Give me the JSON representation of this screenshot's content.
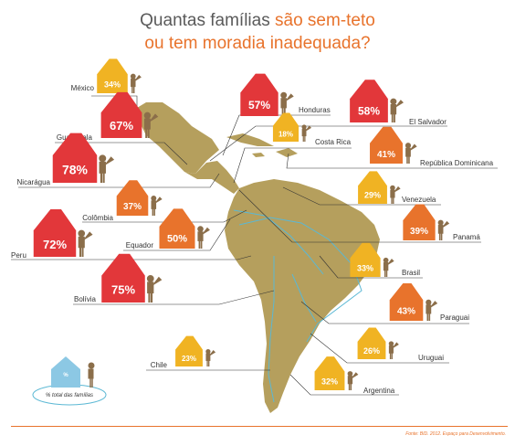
{
  "title": {
    "line1_plain": "Quantas famílias ",
    "line1_accent": "são sem-teto",
    "line2_accent": "ou tem moradia inadequada?"
  },
  "legend": {
    "label": "% total das famílias",
    "symbol": "%"
  },
  "source": "Fonte: BID. 2012. Espaço para Desenvolvimento.",
  "colors": {
    "low": "#f0b323",
    "medium": "#e8732c",
    "high": "#e2373a",
    "legend": "#8cc8e4",
    "land": "#b59f5d",
    "water_lines": "#5bb8d4",
    "accent": "#e8732c"
  },
  "chart_data": {
    "type": "map",
    "unit": "%",
    "countries": [
      {
        "name": "México",
        "value": 34
      },
      {
        "name": "Guatemala",
        "value": 67
      },
      {
        "name": "Nicarágua",
        "value": 78
      },
      {
        "name": "Colômbia",
        "value": 37
      },
      {
        "name": "Peru",
        "value": 72
      },
      {
        "name": "Equador",
        "value": 50
      },
      {
        "name": "Bolívia",
        "value": 75
      },
      {
        "name": "Chile",
        "value": 23
      },
      {
        "name": "Honduras",
        "value": 57
      },
      {
        "name": "El Salvador",
        "value": 58
      },
      {
        "name": "Costa Rica",
        "value": 18
      },
      {
        "name": "República Dominicana",
        "value": 41
      },
      {
        "name": "Venezuela",
        "value": 29
      },
      {
        "name": "Panamá",
        "value": 39
      },
      {
        "name": "Brasil",
        "value": 33
      },
      {
        "name": "Paraguai",
        "value": 43
      },
      {
        "name": "Uruguai",
        "value": 26
      },
      {
        "name": "Argentina",
        "value": 32
      }
    ]
  }
}
